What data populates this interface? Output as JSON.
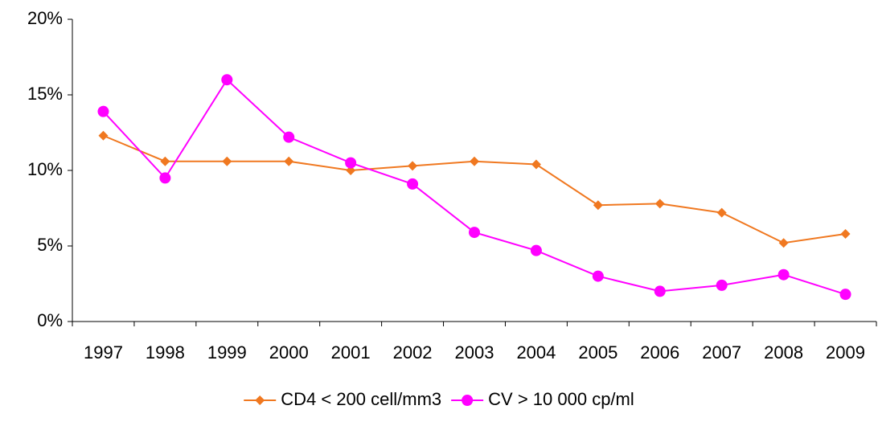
{
  "chart_data": {
    "type": "line",
    "categories": [
      "1997",
      "1998",
      "1999",
      "2000",
      "2001",
      "2002",
      "2003",
      "2004",
      "2005",
      "2006",
      "2007",
      "2008",
      "2009"
    ],
    "series": [
      {
        "name": "CD4 < 200 cell/mm3",
        "color": "#f07820",
        "marker": "diamond",
        "values": [
          12.3,
          10.6,
          10.6,
          10.6,
          10.0,
          10.3,
          10.6,
          10.4,
          7.7,
          7.8,
          7.2,
          5.2,
          5.8
        ]
      },
      {
        "name": "CV > 10 000 cp/ml",
        "color": "#ff00ff",
        "marker": "circle",
        "values": [
          13.9,
          9.5,
          16.0,
          12.2,
          10.5,
          9.1,
          5.9,
          4.7,
          3.0,
          2.0,
          2.4,
          3.1,
          1.8
        ]
      }
    ],
    "ylim": [
      0,
      20
    ],
    "yticks": [
      {
        "value": 0,
        "label": "0%"
      },
      {
        "value": 5,
        "label": "5%"
      },
      {
        "value": 10,
        "label": "10%"
      },
      {
        "value": 15,
        "label": "15%"
      },
      {
        "value": 20,
        "label": "20%"
      }
    ],
    "grid": false,
    "legend": "bottom"
  }
}
